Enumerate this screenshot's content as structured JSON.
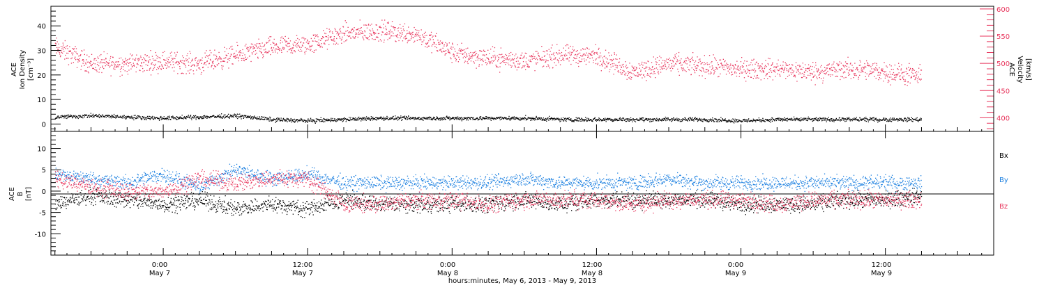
{
  "colors": {
    "axes": "#000000",
    "velocity": "#e8365d",
    "density": "#000000",
    "bx": "#000000",
    "by": "#1a7fe0",
    "bz": "#e8365d"
  },
  "top_panel": {
    "left_label": [
      "ACE",
      "Ion Density",
      "[cm⁻³]"
    ],
    "right_label": [
      "ACE",
      "Velocity",
      "[km/s]"
    ]
  },
  "bottom_panel": {
    "left_label": [
      "ACE",
      "B",
      "[nT]"
    ],
    "legend": [
      "Bx",
      "By",
      "Bz"
    ]
  },
  "xaxis": {
    "tick_labels": [
      "0:00",
      "12:00",
      "0:00",
      "12:00",
      "0:00",
      "12:00"
    ],
    "date_labels": [
      "May 7",
      "May 7",
      "May 8",
      "May 8",
      "May 9",
      "May 9"
    ],
    "title": "hours:minutes, May  6, 2013 - May  9, 2013"
  },
  "chart_data": [
    {
      "type": "scatter",
      "panel": "top",
      "xlabel": "hours:minutes, May  6, 2013 - May  9, 2013",
      "xlim": [
        "2013-05-06 14:40",
        "2013-05-09 21:00"
      ],
      "ylim_left": [
        -3,
        48
      ],
      "ylim_right": [
        375,
        605
      ],
      "yticks_left": [
        0,
        10,
        20,
        30,
        40
      ],
      "yticks_right": [
        400,
        450,
        500,
        550,
        600
      ],
      "series": [
        {
          "name": "Velocity",
          "axis": "right",
          "unit": "km/s",
          "x": [
            "2013-05-06 15:00",
            "2013-05-06 18:00",
            "2013-05-06 21:00",
            "2013-05-07 00:00",
            "2013-05-07 03:00",
            "2013-05-07 06:00",
            "2013-05-07 09:00",
            "2013-05-07 12:00",
            "2013-05-07 15:00",
            "2013-05-07 18:00",
            "2013-05-07 21:00",
            "2013-05-08 00:00",
            "2013-05-08 03:00",
            "2013-05-08 06:00",
            "2013-05-08 09:00",
            "2013-05-08 12:00",
            "2013-05-08 15:00",
            "2013-05-08 18:00",
            "2013-05-08 21:00",
            "2013-05-09 00:00",
            "2013-05-09 03:00",
            "2013-05-09 06:00",
            "2013-05-09 09:00",
            "2013-05-09 12:00",
            "2013-05-09 15:00"
          ],
          "values": [
            530,
            500,
            500,
            505,
            500,
            515,
            530,
            535,
            555,
            560,
            555,
            520,
            510,
            505,
            515,
            515,
            485,
            500,
            495,
            490,
            490,
            485,
            490,
            485,
            475
          ]
        },
        {
          "name": "Ion Density",
          "axis": "left",
          "unit": "cm^-3",
          "x": [
            "2013-05-06 15:00",
            "2013-05-06 18:00",
            "2013-05-06 21:00",
            "2013-05-07 00:00",
            "2013-05-07 03:00",
            "2013-05-07 06:00",
            "2013-05-07 09:00",
            "2013-05-07 12:00",
            "2013-05-07 15:00",
            "2013-05-07 18:00",
            "2013-05-07 21:00",
            "2013-05-08 00:00",
            "2013-05-08 03:00",
            "2013-05-08 06:00",
            "2013-05-08 09:00",
            "2013-05-08 12:00",
            "2013-05-08 15:00",
            "2013-05-08 18:00",
            "2013-05-08 21:00",
            "2013-05-09 00:00",
            "2013-05-09 03:00",
            "2013-05-09 06:00",
            "2013-05-09 09:00",
            "2013-05-09 12:00",
            "2013-05-09 15:00"
          ],
          "values": [
            3,
            3.5,
            3,
            2.5,
            3,
            3.5,
            2,
            1.5,
            2,
            2.5,
            2.5,
            2.5,
            2.5,
            2.5,
            2,
            2,
            2,
            2,
            2,
            1.5,
            2,
            2,
            2,
            2,
            2
          ]
        }
      ]
    },
    {
      "type": "scatter",
      "panel": "bottom",
      "xlim": [
        "2013-05-06 14:40",
        "2013-05-09 21:00"
      ],
      "ylim": [
        -15,
        14
      ],
      "yticks": [
        -10,
        -5,
        0,
        5,
        10
      ],
      "legend_position": "right",
      "series": [
        {
          "name": "Bx",
          "x": [
            "2013-05-06 15:00",
            "2013-05-06 18:00",
            "2013-05-06 21:00",
            "2013-05-07 00:00",
            "2013-05-07 03:00",
            "2013-05-07 06:00",
            "2013-05-07 09:00",
            "2013-05-07 12:00",
            "2013-05-07 15:00",
            "2013-05-07 18:00",
            "2013-05-07 21:00",
            "2013-05-08 00:00",
            "2013-05-08 03:00",
            "2013-05-08 06:00",
            "2013-05-08 09:00",
            "2013-05-08 12:00",
            "2013-05-08 15:00",
            "2013-05-08 18:00",
            "2013-05-08 21:00",
            "2013-05-09 00:00",
            "2013-05-09 03:00",
            "2013-05-09 06:00",
            "2013-05-09 09:00",
            "2013-05-09 12:00",
            "2013-05-09 15:00"
          ],
          "values": [
            -3,
            -1,
            -2,
            -3,
            -2,
            -4,
            -3,
            -4,
            -2,
            -3,
            -3,
            -3,
            -3,
            -2,
            -3,
            -2,
            -2,
            -2,
            -2,
            -3,
            -3,
            -3,
            -2,
            -2,
            -1
          ]
        },
        {
          "name": "By",
          "x": [
            "2013-05-06 15:00",
            "2013-05-06 18:00",
            "2013-05-06 21:00",
            "2013-05-07 00:00",
            "2013-05-07 03:00",
            "2013-05-07 06:00",
            "2013-05-07 09:00",
            "2013-05-07 12:00",
            "2013-05-07 15:00",
            "2013-05-07 18:00",
            "2013-05-07 21:00",
            "2013-05-08 00:00",
            "2013-05-08 03:00",
            "2013-05-08 06:00",
            "2013-05-08 09:00",
            "2013-05-08 12:00",
            "2013-05-08 15:00",
            "2013-05-08 18:00",
            "2013-05-08 21:00",
            "2013-05-09 00:00",
            "2013-05-09 03:00",
            "2013-05-09 06:00",
            "2013-05-09 09:00",
            "2013-05-09 12:00",
            "2013-05-09 15:00"
          ],
          "values": [
            4,
            3,
            2,
            4,
            1,
            5,
            3,
            4,
            2,
            2,
            2,
            2,
            2,
            3,
            2,
            2,
            2,
            3,
            2,
            2,
            2,
            2,
            2,
            2,
            2
          ]
        },
        {
          "name": "Bz",
          "x": [
            "2013-05-06 15:00",
            "2013-05-06 18:00",
            "2013-05-06 21:00",
            "2013-05-07 00:00",
            "2013-05-07 03:00",
            "2013-05-07 06:00",
            "2013-05-07 09:00",
            "2013-05-07 12:00",
            "2013-05-07 15:00",
            "2013-05-07 18:00",
            "2013-05-07 21:00",
            "2013-05-08 00:00",
            "2013-05-08 03:00",
            "2013-05-08 06:00",
            "2013-05-08 09:00",
            "2013-05-08 12:00",
            "2013-05-08 15:00",
            "2013-05-08 18:00",
            "2013-05-08 21:00",
            "2013-05-09 00:00",
            "2013-05-09 03:00",
            "2013-05-09 06:00",
            "2013-05-09 09:00",
            "2013-05-09 12:00",
            "2013-05-09 15:00"
          ],
          "values": [
            3,
            1,
            0,
            0,
            3,
            2,
            3,
            3,
            -3,
            -3,
            -2,
            -2,
            -3,
            -2,
            -2,
            -2,
            -3,
            -2,
            -2,
            -2,
            -3,
            -2,
            -2,
            -2,
            -2
          ]
        }
      ]
    }
  ]
}
